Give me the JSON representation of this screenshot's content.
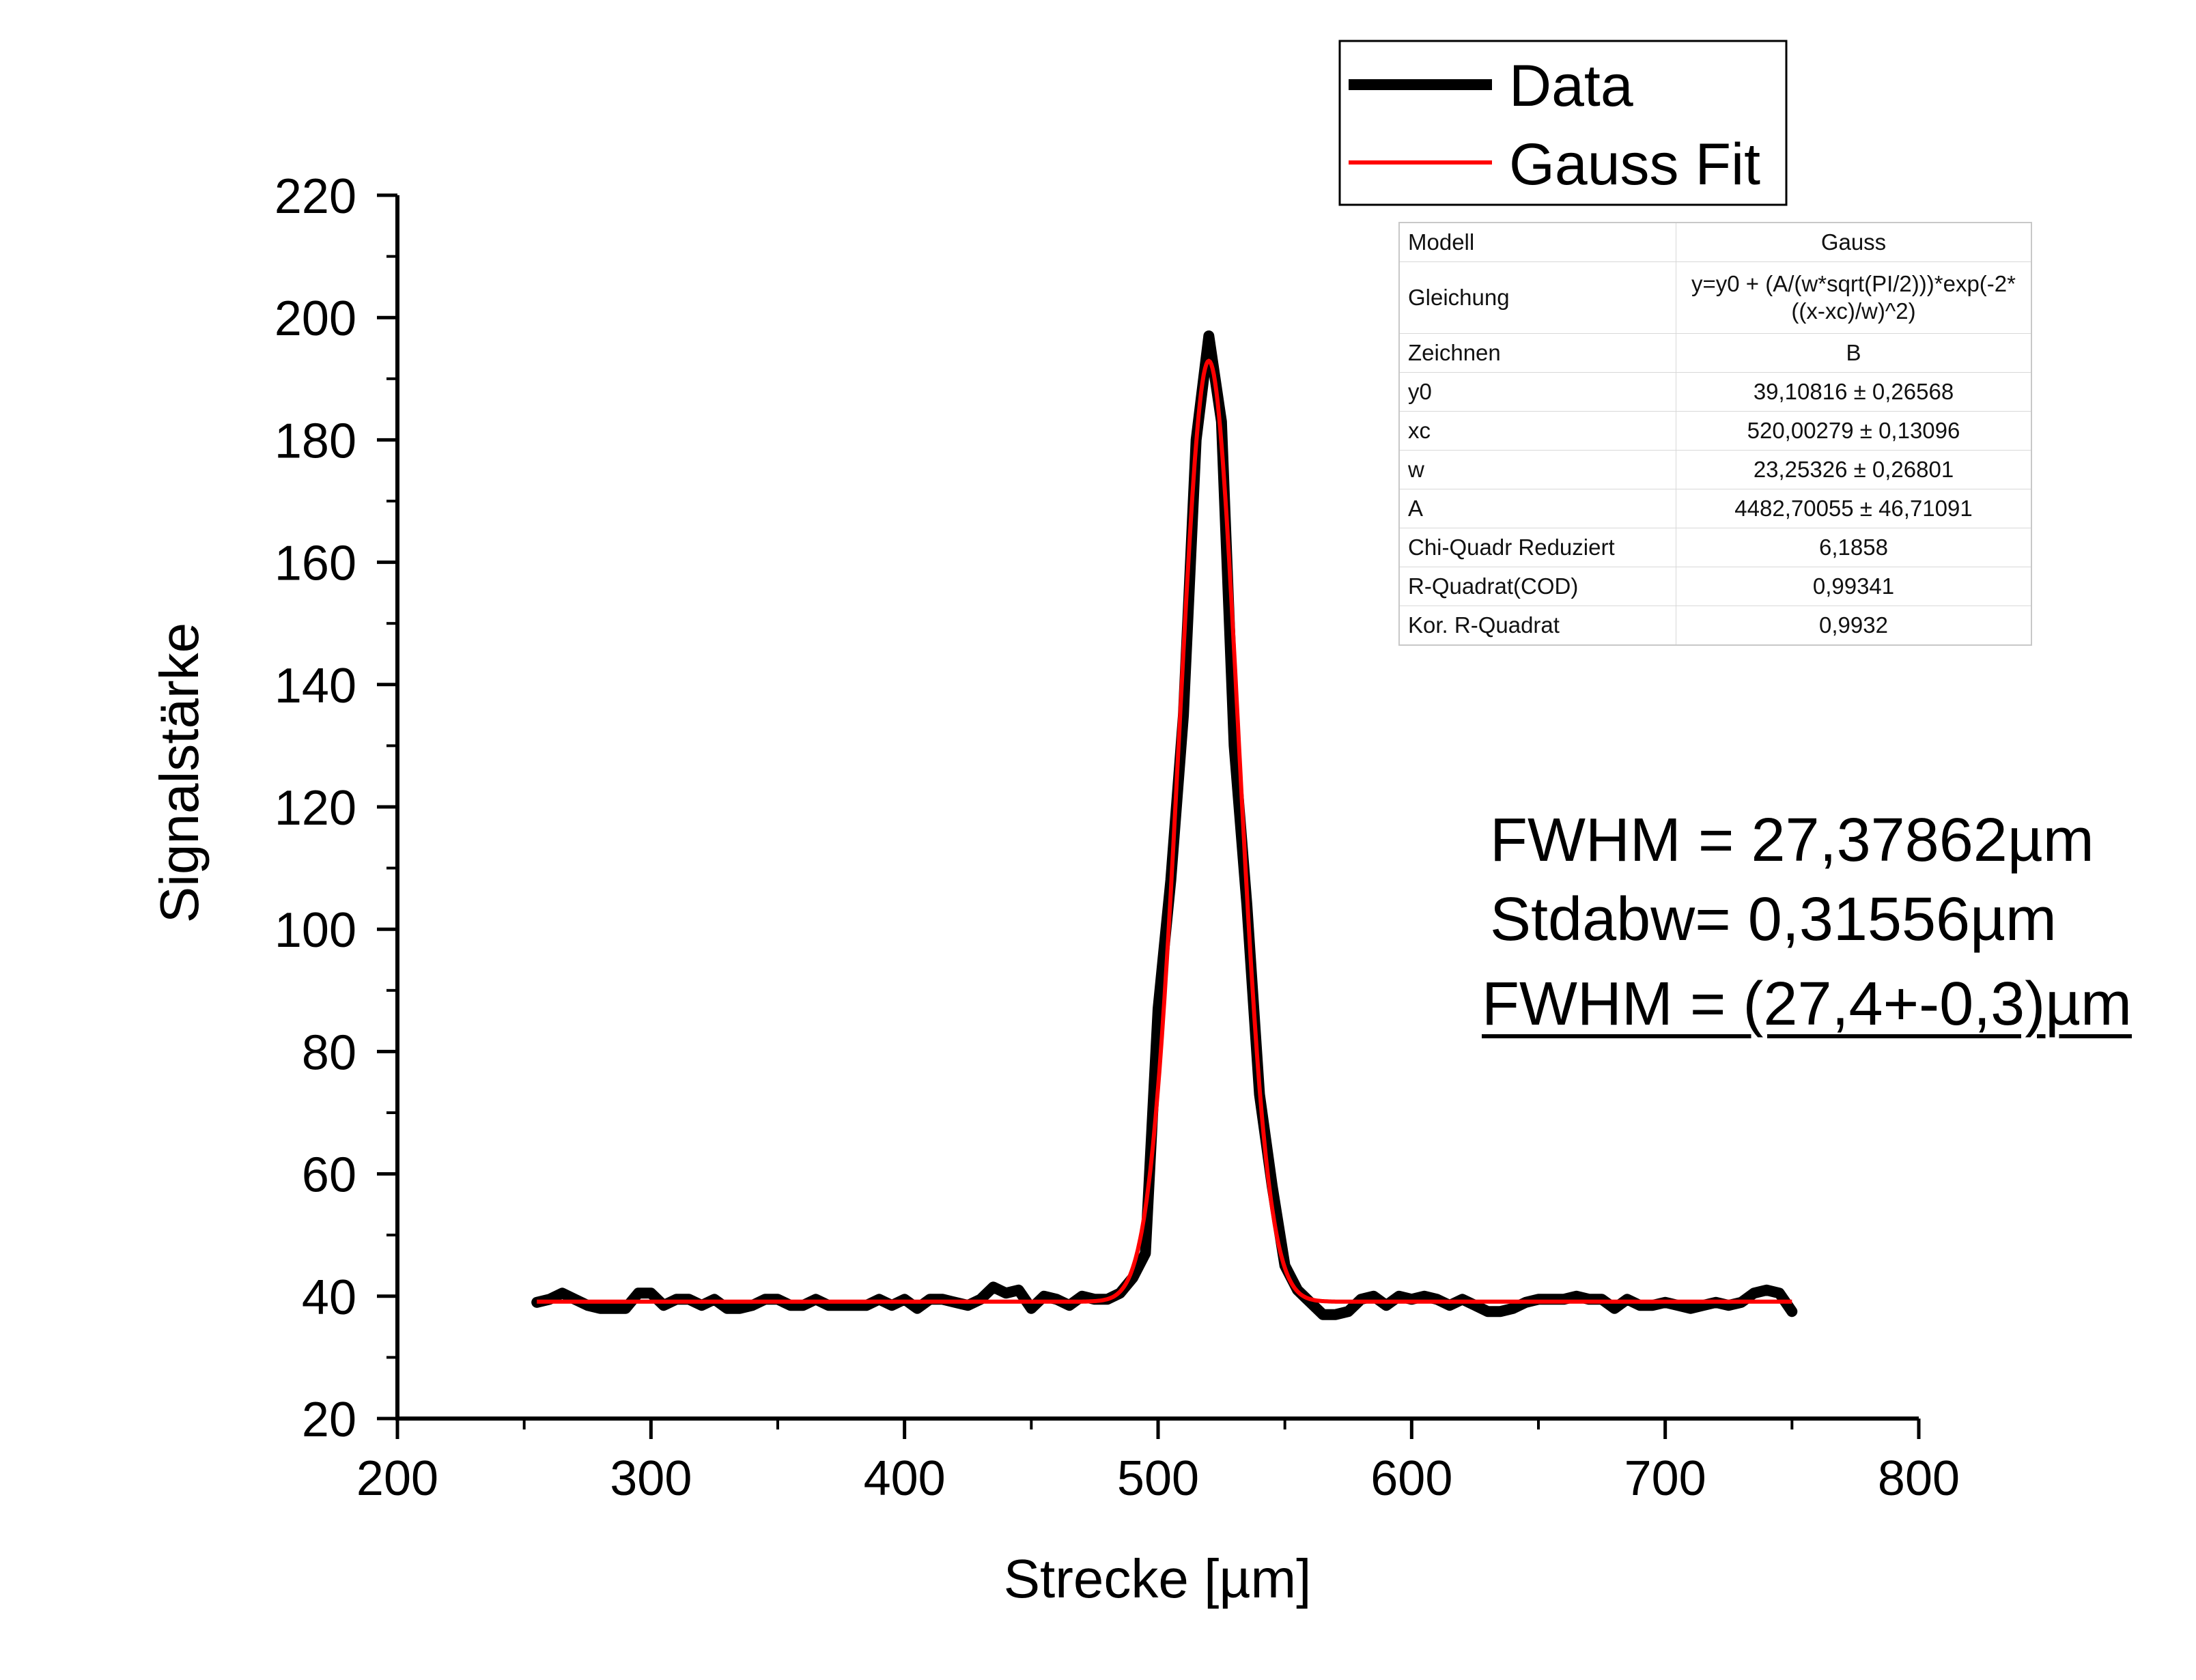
{
  "chart_data": {
    "type": "line",
    "xlabel": "Strecke [µm]",
    "ylabel": "Signalstärke",
    "xlim": [
      200,
      800
    ],
    "ylim": [
      20,
      220
    ],
    "xticks": [
      200,
      300,
      400,
      500,
      600,
      700,
      800
    ],
    "yticks": [
      20,
      40,
      60,
      80,
      100,
      120,
      140,
      160,
      180,
      200,
      220
    ],
    "legend_position": "top-right",
    "series": [
      {
        "name": "Data",
        "color": "#000000",
        "x": [
          255,
          260,
          265,
          270,
          275,
          280,
          285,
          290,
          295,
          300,
          305,
          310,
          315,
          320,
          325,
          330,
          335,
          340,
          345,
          350,
          355,
          360,
          365,
          370,
          375,
          380,
          385,
          390,
          395,
          400,
          405,
          410,
          415,
          420,
          425,
          430,
          435,
          440,
          445,
          450,
          455,
          460,
          465,
          470,
          475,
          480,
          485,
          490,
          495,
          500,
          505,
          510,
          515,
          520,
          525,
          530,
          535,
          540,
          545,
          550,
          555,
          560,
          565,
          570,
          575,
          580,
          585,
          590,
          595,
          600,
          605,
          610,
          615,
          620,
          625,
          630,
          635,
          640,
          645,
          650,
          655,
          660,
          665,
          670,
          675,
          680,
          685,
          690,
          695,
          700,
          705,
          710,
          715,
          720,
          725,
          730,
          735,
          740,
          745,
          750
        ],
        "y": [
          39,
          39.5,
          40.5,
          39.5,
          38.5,
          38,
          38,
          38,
          40.5,
          40.5,
          38.5,
          39.5,
          39.5,
          38.5,
          39.5,
          38,
          38,
          38.5,
          39.5,
          39.5,
          38.5,
          38.5,
          39.5,
          38.5,
          38.5,
          38.5,
          38.5,
          39.5,
          38.5,
          39.5,
          38,
          39.5,
          39.5,
          39,
          38.5,
          39.5,
          41.5,
          40.5,
          41,
          38,
          40,
          39.5,
          38.5,
          40,
          39.5,
          39.5,
          40.5,
          43,
          47,
          87,
          108,
          135,
          180,
          197,
          183,
          130,
          104,
          73,
          58,
          45,
          41,
          39,
          37,
          37,
          37.5,
          39.5,
          40,
          38.5,
          40,
          39.5,
          40,
          39.5,
          38.5,
          39.5,
          38.5,
          37.5,
          37.5,
          38,
          39,
          39.5,
          39.5,
          39.5,
          40,
          39.5,
          39.5,
          38,
          39.5,
          38.5,
          38.5,
          39,
          38.5,
          38,
          38.5,
          39,
          38.5,
          39,
          40.5,
          41,
          40.5,
          37.5
        ]
      },
      {
        "name": "Gauss Fit",
        "color": "#ff0000",
        "model": {
          "y0": 39.10816,
          "xc": 520.00279,
          "w": 23.25326,
          "A": 4482.70055
        }
      }
    ]
  },
  "fit_table": [
    {
      "label": "Modell",
      "value": "Gauss"
    },
    {
      "label": "Gleichung",
      "value": "y=y0 + (A/(w*sqrt(PI/2)))*exp(-2*((x-xc)/w)^2)"
    },
    {
      "label": "Zeichnen",
      "value": "B"
    },
    {
      "label": "y0",
      "value": "39,10816 ± 0,26568"
    },
    {
      "label": "xc",
      "value": "520,00279 ± 0,13096"
    },
    {
      "label": "w",
      "value": "23,25326 ± 0,26801"
    },
    {
      "label": "A",
      "value": "4482,70055 ± 46,71091"
    },
    {
      "label": "Chi-Quadr Reduziert",
      "value": "6,1858"
    },
    {
      "label": "R-Quadrat(COD)",
      "value": "0,99341"
    },
    {
      "label": "Kor. R-Quadrat",
      "value": "0,9932"
    }
  ],
  "annotations": {
    "fwhm": "FWHM = 27,37862µm",
    "stdabw": "Stdabw= 0,31556µm",
    "result": "FWHM = (27,4+-0,3)µm"
  }
}
